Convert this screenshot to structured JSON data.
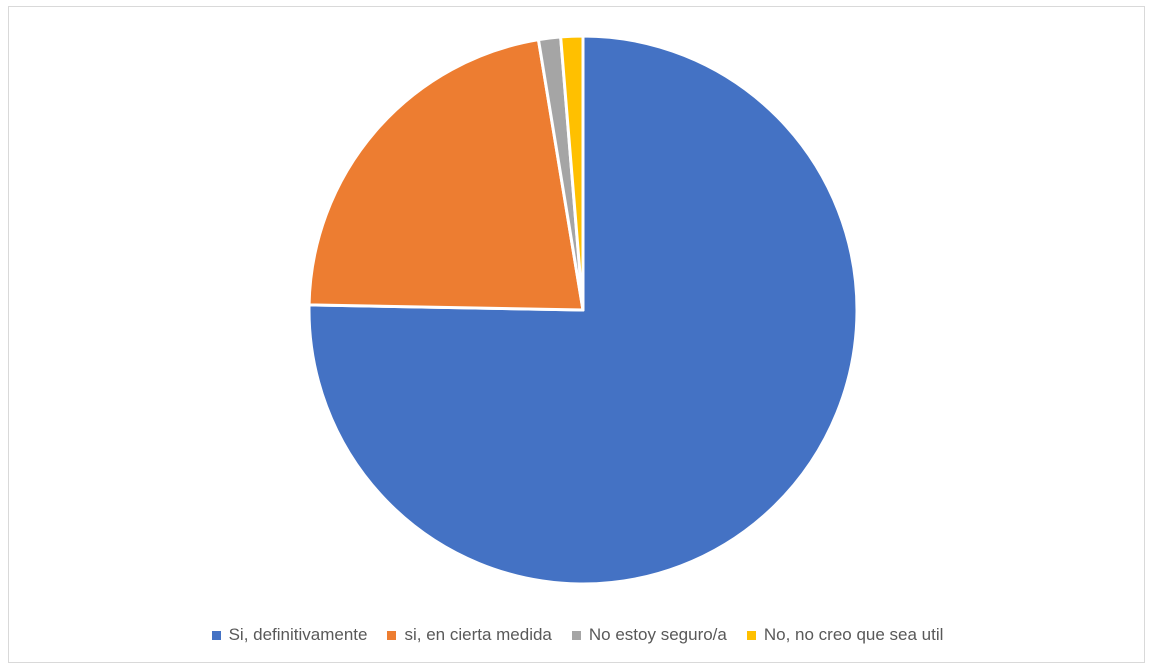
{
  "chart_data": {
    "type": "pie",
    "title": "",
    "categories": [
      "Si, definitivamente",
      "si, en cierta medida",
      "No estoy seguro/a",
      "No, no creo que sea util"
    ],
    "values": [
      75.3,
      22.1,
      1.3,
      1.3
    ],
    "colors": [
      "#4472C4",
      "#ED7D31",
      "#A5A5A5",
      "#FFC000"
    ],
    "start_angle": "12 o'clock",
    "direction": "clockwise",
    "legend_position": "bottom"
  }
}
